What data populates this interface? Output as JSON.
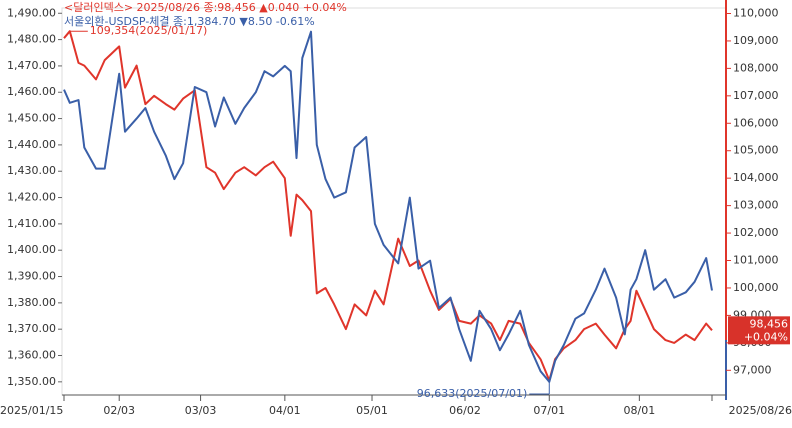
{
  "chart_data": {
    "type": "line",
    "x": [
      "2025-01-15",
      "2025-01-17",
      "2025-01-20",
      "2025-01-22",
      "2025-01-26",
      "2025-01-29",
      "2025-02-03",
      "2025-02-05",
      "2025-02-09",
      "2025-02-12",
      "2025-02-15",
      "2025-02-19",
      "2025-02-22",
      "2025-02-25",
      "2025-03-01",
      "2025-03-05",
      "2025-03-08",
      "2025-03-11",
      "2025-03-15",
      "2025-03-18",
      "2025-03-22",
      "2025-03-25",
      "2025-03-28",
      "2025-04-01",
      "2025-04-03",
      "2025-04-05",
      "2025-04-07",
      "2025-04-10",
      "2025-04-12",
      "2025-04-15",
      "2025-04-18",
      "2025-04-22",
      "2025-04-25",
      "2025-04-29",
      "2025-05-02",
      "2025-05-05",
      "2025-05-10",
      "2025-05-14",
      "2025-05-17",
      "2025-05-21",
      "2025-05-24",
      "2025-05-28",
      "2025-05-31",
      "2025-06-04",
      "2025-06-07",
      "2025-06-11",
      "2025-06-14",
      "2025-06-17",
      "2025-06-21",
      "2025-06-24",
      "2025-06-28",
      "2025-07-01",
      "2025-07-03",
      "2025-07-06",
      "2025-07-10",
      "2025-07-13",
      "2025-07-17",
      "2025-07-20",
      "2025-07-24",
      "2025-07-27",
      "2025-07-29",
      "2025-07-31",
      "2025-08-03",
      "2025-08-06",
      "2025-08-10",
      "2025-08-13",
      "2025-08-17",
      "2025-08-20",
      "2025-08-24",
      "2025-08-26"
    ],
    "xlim": [
      "2025-01-15",
      "2025-08-26"
    ],
    "xticks": [
      {
        "value": "2025-01-15",
        "label": "2025/01/15"
      },
      {
        "value": "2025-02-03",
        "label": "02/03"
      },
      {
        "value": "2025-03-03",
        "label": "03/03"
      },
      {
        "value": "2025-04-01",
        "label": "04/01"
      },
      {
        "value": "2025-05-01",
        "label": "05/01"
      },
      {
        "value": "2025-06-02",
        "label": "06/02"
      },
      {
        "value": "2025-07-01",
        "label": "07/01"
      },
      {
        "value": "2025-08-01",
        "label": "08/01"
      },
      {
        "value": "2025-08-26",
        "label": "2025/08/26"
      }
    ],
    "ylim": [
      1345,
      1492
    ],
    "yticks": [
      {
        "value": 1350,
        "label": "1,350.00"
      },
      {
        "value": 1360,
        "label": "1,360.00"
      },
      {
        "value": 1370,
        "label": "1,370.00"
      },
      {
        "value": 1380,
        "label": "1,380.00"
      },
      {
        "value": 1390,
        "label": "1,390.00"
      },
      {
        "value": 1400,
        "label": "1,400.00"
      },
      {
        "value": 1410,
        "label": "1,410.00"
      },
      {
        "value": 1420,
        "label": "1,420.00"
      },
      {
        "value": 1430,
        "label": "1,430.00"
      },
      {
        "value": 1440,
        "label": "1,440.00"
      },
      {
        "value": 1450,
        "label": "1,450.00"
      },
      {
        "value": 1460,
        "label": "1,460.00"
      },
      {
        "value": 1470,
        "label": "1,470.00"
      },
      {
        "value": 1480,
        "label": "1,480.00"
      },
      {
        "value": 1490,
        "label": "1,490.00"
      }
    ],
    "y2lim": [
      96100,
      110200
    ],
    "y2ticks": [
      {
        "value": 97000,
        "label": "97,000"
      },
      {
        "value": 98000,
        "label": "98,000"
      },
      {
        "value": 99000,
        "label": "99,000"
      },
      {
        "value": 100000,
        "label": "100,000"
      },
      {
        "value": 101000,
        "label": "101,000"
      },
      {
        "value": 102000,
        "label": "102,000"
      },
      {
        "value": 103000,
        "label": "103,000"
      },
      {
        "value": 104000,
        "label": "104,000"
      },
      {
        "value": 105000,
        "label": "105,000"
      },
      {
        "value": 106000,
        "label": "106,000"
      },
      {
        "value": 107000,
        "label": "107,000"
      },
      {
        "value": 108000,
        "label": "108,000"
      },
      {
        "value": 109000,
        "label": "109,000"
      },
      {
        "value": 110000,
        "label": "110,000"
      }
    ],
    "series": [
      {
        "name": "<달러인덱스>",
        "color": "#e0352b",
        "axis": "y2",
        "values": [
          109100,
          109354,
          108200,
          108100,
          107600,
          108300,
          108800,
          107300,
          108100,
          106700,
          107000,
          106700,
          106500,
          106900,
          107200,
          104400,
          104200,
          103600,
          104200,
          104400,
          104100,
          104400,
          104600,
          104000,
          101900,
          103400,
          103200,
          102800,
          99800,
          100000,
          99400,
          98500,
          99400,
          99000,
          99900,
          99400,
          101800,
          100800,
          101000,
          99900,
          99200,
          99600,
          98800,
          98700,
          99000,
          98700,
          98100,
          98800,
          98700,
          98000,
          97400,
          96633,
          97400,
          97800,
          98100,
          98500,
          98700,
          98300,
          97800,
          98500,
          98800,
          99900,
          99200,
          98500,
          98100,
          98000,
          98300,
          98100,
          98700,
          98456
        ]
      },
      {
        "name": "서울외환-USDSP-체결",
        "color": "#3a5fa8",
        "axis": "y",
        "values": [
          1461,
          1456,
          1457,
          1439,
          1431,
          1431,
          1467,
          1445,
          1450,
          1454,
          1445,
          1436,
          1427,
          1433,
          1462,
          1460,
          1447,
          1458,
          1448,
          1454,
          1460,
          1468,
          1466,
          1470,
          1468,
          1435,
          1473,
          1483,
          1440,
          1427,
          1420,
          1422,
          1439,
          1443,
          1410,
          1402,
          1395,
          1420,
          1393,
          1396,
          1378,
          1382,
          1370,
          1358,
          1377,
          1370,
          1362,
          1368,
          1377,
          1364,
          1354,
          1350,
          1358,
          1364,
          1374,
          1376,
          1385,
          1393,
          1382,
          1368,
          1385,
          1389,
          1400,
          1385,
          1389,
          1382,
          1384,
          1388,
          1397,
          1384.7
        ]
      }
    ],
    "legend_info": [
      "2025/08/26 종:98,456",
      "▲0.040  +0.04%",
      "종:1,384.70",
      "▼8.50  -0.61%"
    ],
    "annotations": [
      "109,354(2025/01/17)",
      "96,633(2025/07/01)"
    ],
    "end_labels": [
      "98,456",
      "+0.04%"
    ]
  }
}
